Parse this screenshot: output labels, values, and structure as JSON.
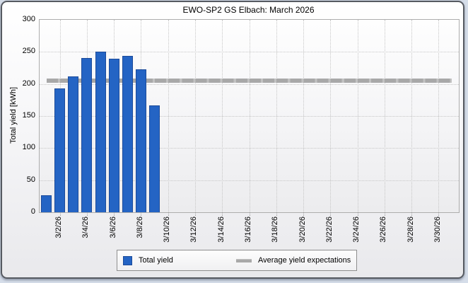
{
  "chart_data": {
    "type": "bar",
    "title": "EWO-SP2 GS Elbach: March 2026",
    "xlabel": "",
    "ylabel": "Total yield [kWh]",
    "ylim": [
      0,
      300
    ],
    "yticks": [
      0,
      50,
      100,
      150,
      200,
      250,
      300
    ],
    "days_in_month": 31,
    "grid": true,
    "legend_position": "bottom",
    "series": [
      {
        "name": "Total yield",
        "type": "bar",
        "days": [
          1,
          2,
          3,
          4,
          5,
          6,
          7,
          8,
          9
        ],
        "dates": [
          "3/1/26",
          "3/2/26",
          "3/3/26",
          "3/4/26",
          "3/5/26",
          "3/6/26",
          "3/7/26",
          "3/8/26",
          "3/9/26"
        ],
        "values": [
          26,
          193,
          212,
          240,
          250,
          239,
          244,
          223,
          166
        ]
      }
    ],
    "average_line": {
      "name": "Average yield expectations",
      "value": 205
    },
    "xticks": [
      {
        "day": 2,
        "label": "3/2/26"
      },
      {
        "day": 4,
        "label": "3/4/26"
      },
      {
        "day": 6,
        "label": "3/6/26"
      },
      {
        "day": 8,
        "label": "3/8/26"
      },
      {
        "day": 10,
        "label": "3/10/26"
      },
      {
        "day": 12,
        "label": "3/12/26"
      },
      {
        "day": 14,
        "label": "3/14/26"
      },
      {
        "day": 16,
        "label": "3/16/26"
      },
      {
        "day": 18,
        "label": "3/18/26"
      },
      {
        "day": 20,
        "label": "3/20/26"
      },
      {
        "day": 22,
        "label": "3/22/26"
      },
      {
        "day": 24,
        "label": "3/24/26"
      },
      {
        "day": 26,
        "label": "3/26/26"
      },
      {
        "day": 28,
        "label": "3/28/26"
      },
      {
        "day": 30,
        "label": "3/30/26"
      }
    ],
    "colors": {
      "bar_fill": "#2464c4",
      "bar_border": "#1c4b9a",
      "average_line": "#a8a8a8",
      "average_line_gap": "#c2c2c2",
      "grid": "#c6c6c6",
      "plot_border": "#adadad"
    }
  },
  "legend": {
    "items": [
      {
        "label": "Total yield",
        "swatch": "bar"
      },
      {
        "label": "Average yield expectations",
        "swatch": "line"
      }
    ]
  }
}
